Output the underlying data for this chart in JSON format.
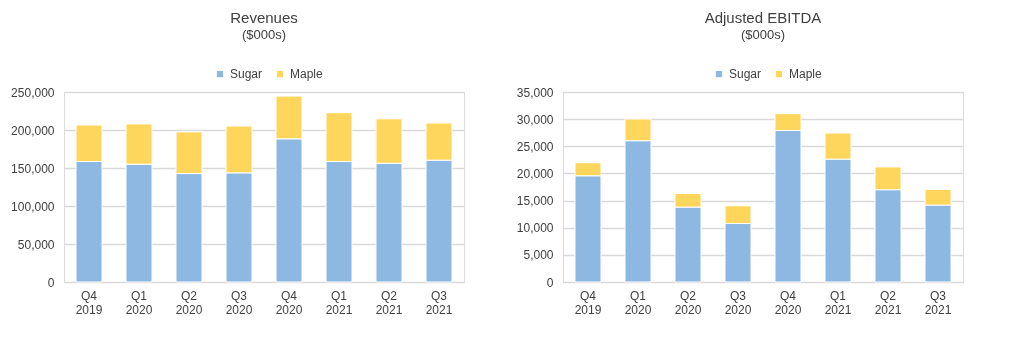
{
  "chart_data": [
    {
      "type": "bar",
      "title": "Revenues",
      "subtitle": "($000s)",
      "stacked": true,
      "legend": "top",
      "grid": "y",
      "categories": [
        "Q4 2019",
        "Q1 2020",
        "Q2 2020",
        "Q3 2020",
        "Q4 2020",
        "Q1 2021",
        "Q2 2021",
        "Q3 2021"
      ],
      "series": [
        {
          "name": "Sugar",
          "color": "#8db8e2",
          "values": [
            158500,
            155000,
            142700,
            143600,
            188400,
            158500,
            156200,
            160300
          ]
        },
        {
          "name": "Maple",
          "color": "#ffd65c",
          "values": [
            48000,
            53000,
            54800,
            61600,
            56200,
            64300,
            58500,
            48900
          ]
        }
      ],
      "ylim": [
        0,
        250000
      ],
      "yticks": [
        {
          "value": 0,
          "label": "0"
        },
        {
          "value": 50000,
          "label": "50,000"
        },
        {
          "value": 100000,
          "label": "100,000"
        },
        {
          "value": 150000,
          "label": "150,000"
        },
        {
          "value": 200000,
          "label": "200,000"
        },
        {
          "value": 250000,
          "label": "250,000"
        }
      ]
    },
    {
      "type": "bar",
      "title": "Adjusted EBITDA",
      "subtitle": "($000s)",
      "stacked": true,
      "legend": "top",
      "grid": "y",
      "categories": [
        "Q4 2019",
        "Q1 2020",
        "Q2 2020",
        "Q3 2020",
        "Q4 2020",
        "Q1 2021",
        "Q2 2021",
        "Q3 2021"
      ],
      "series": [
        {
          "name": "Sugar",
          "color": "#8db8e2",
          "values": [
            19570,
            26030,
            13800,
            10790,
            27910,
            22640,
            17000,
            14170
          ]
        },
        {
          "name": "Maple",
          "color": "#ffd65c",
          "values": [
            2400,
            4000,
            2500,
            3250,
            3100,
            4800,
            4200,
            2900
          ]
        }
      ],
      "ylim": [
        0,
        35000
      ],
      "yticks": [
        {
          "value": 0,
          "label": "0"
        },
        {
          "value": 5000,
          "label": "5,000"
        },
        {
          "value": 10000,
          "label": "10,000"
        },
        {
          "value": 15000,
          "label": "15,000"
        },
        {
          "value": 20000,
          "label": "20,000"
        },
        {
          "value": 25000,
          "label": "25,000"
        },
        {
          "value": 30000,
          "label": "30,000"
        },
        {
          "value": 35000,
          "label": "35,000"
        }
      ]
    }
  ]
}
